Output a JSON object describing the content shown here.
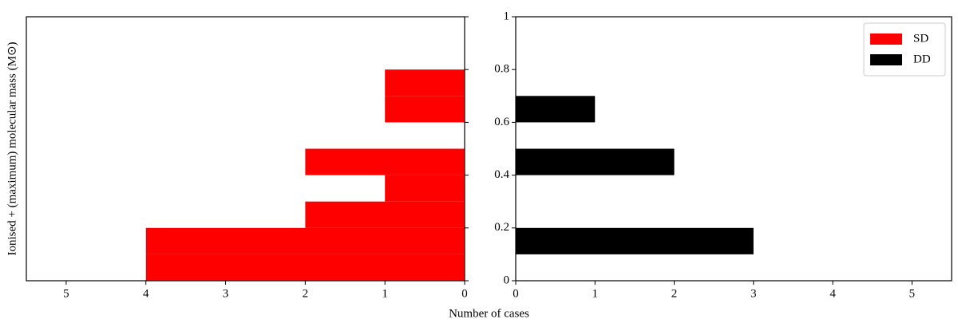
{
  "chart_data": [
    {
      "type": "histogram",
      "orientation": "horizontal",
      "ylabel": "Ionised + (maximum) molecular mass (M⊙)",
      "xlabel": "Number of cases",
      "bins": [
        0,
        0.1,
        0.2,
        0.3,
        0.4,
        0.5,
        0.6,
        0.7,
        0.8
      ],
      "series": [
        {
          "name": "SD",
          "color": "#ff0000",
          "values": [
            4,
            4,
            2,
            1,
            2,
            0,
            1,
            1
          ]
        }
      ],
      "xlim": [
        5.5,
        0
      ],
      "xticks": [
        5,
        4,
        3,
        2,
        1,
        0
      ],
      "ylim": [
        0,
        1
      ],
      "yticks": [
        0,
        0.2,
        0.4,
        0.6,
        0.8,
        1
      ],
      "ytick_labels": false,
      "yaxis_side": "right"
    },
    {
      "type": "histogram",
      "orientation": "horizontal",
      "bins": [
        0,
        0.1,
        0.2,
        0.3,
        0.4,
        0.5,
        0.6,
        0.7,
        0.8
      ],
      "series": [
        {
          "name": "DD",
          "color": "#000000",
          "values": [
            0,
            3,
            0,
            0,
            2,
            0,
            1,
            0
          ]
        }
      ],
      "xlim": [
        0,
        5.5
      ],
      "xticks": [
        0,
        1,
        2,
        3,
        4,
        5
      ],
      "ylim": [
        0,
        1
      ],
      "yticks": [
        0,
        0.2,
        0.4,
        0.6,
        0.8,
        1
      ],
      "ytick_labels": true,
      "yaxis_side": "left",
      "legend": "upper right"
    }
  ]
}
